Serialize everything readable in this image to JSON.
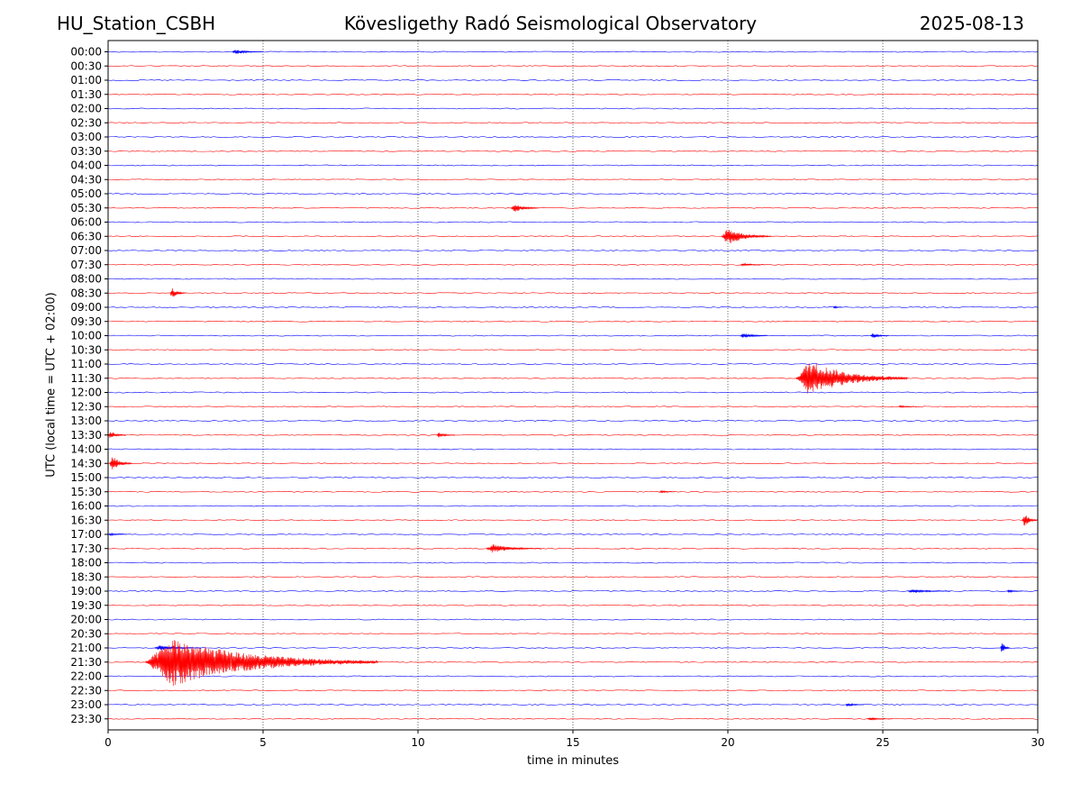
{
  "header": {
    "station": "HU_Station_CSBH",
    "observatory": "Kövesligethy Radó Seismological Observatory",
    "date": "2025-08-13"
  },
  "chart_data": {
    "type": "line",
    "title": "Kövesligethy Radó Seismological Observatory",
    "xlabel": "time in minutes",
    "ylabel": "UTC (local time = UTC + 02:00)",
    "xlim": [
      0,
      30
    ],
    "xticks": [
      0,
      5,
      10,
      15,
      20,
      25,
      30
    ],
    "vertical_gridlines": [
      5,
      10,
      15,
      20,
      25
    ],
    "grid_style": "dotted",
    "trace_colors": [
      "#0000ff",
      "#ff0000"
    ],
    "rows": [
      "00:00",
      "00:30",
      "01:00",
      "01:30",
      "02:00",
      "02:30",
      "03:00",
      "03:30",
      "04:00",
      "04:30",
      "05:00",
      "05:30",
      "06:00",
      "06:30",
      "07:00",
      "07:30",
      "08:00",
      "08:30",
      "09:00",
      "09:30",
      "10:00",
      "10:30",
      "11:00",
      "11:30",
      "12:00",
      "12:30",
      "13:00",
      "13:30",
      "14:00",
      "14:30",
      "15:00",
      "15:30",
      "16:00",
      "16:30",
      "17:00",
      "17:30",
      "18:00",
      "18:30",
      "19:00",
      "19:30",
      "20:00",
      "20:30",
      "21:00",
      "21:30",
      "22:00",
      "22:30",
      "23:00",
      "23:30"
    ],
    "events": [
      {
        "row": "00:00",
        "start_min": 4.0,
        "duration_min": 1.0,
        "amplitude": 0.2
      },
      {
        "row": "05:30",
        "start_min": 13.0,
        "duration_min": 0.9,
        "amplitude": 0.3
      },
      {
        "row": "06:30",
        "start_min": 19.8,
        "duration_min": 1.6,
        "amplitude": 0.6
      },
      {
        "row": "07:30",
        "start_min": 20.4,
        "duration_min": 0.8,
        "amplitude": 0.1
      },
      {
        "row": "08:30",
        "start_min": 2.0,
        "duration_min": 0.5,
        "amplitude": 0.4
      },
      {
        "row": "09:00",
        "start_min": 23.4,
        "duration_min": 0.3,
        "amplitude": 0.1
      },
      {
        "row": "10:00",
        "start_min": 20.4,
        "duration_min": 0.9,
        "amplitude": 0.2
      },
      {
        "row": "10:00",
        "start_min": 24.6,
        "duration_min": 0.6,
        "amplitude": 0.2
      },
      {
        "row": "11:30",
        "start_min": 22.2,
        "duration_min": 3.6,
        "amplitude": 1.3
      },
      {
        "row": "12:30",
        "start_min": 25.5,
        "duration_min": 0.6,
        "amplitude": 0.1
      },
      {
        "row": "13:30",
        "start_min": 0.0,
        "duration_min": 0.6,
        "amplitude": 0.3
      },
      {
        "row": "13:30",
        "start_min": 10.6,
        "duration_min": 0.6,
        "amplitude": 0.2
      },
      {
        "row": "14:30",
        "start_min": 0.05,
        "duration_min": 0.7,
        "amplitude": 0.6
      },
      {
        "row": "15:30",
        "start_min": 17.8,
        "duration_min": 0.5,
        "amplitude": 0.1
      },
      {
        "row": "16:30",
        "start_min": 29.5,
        "duration_min": 0.5,
        "amplitude": 0.5
      },
      {
        "row": "17:00",
        "start_min": 0.0,
        "duration_min": 0.6,
        "amplitude": 0.1
      },
      {
        "row": "17:30",
        "start_min": 12.2,
        "duration_min": 1.8,
        "amplitude": 0.3
      },
      {
        "row": "19:00",
        "start_min": 25.8,
        "duration_min": 1.4,
        "amplitude": 0.15
      },
      {
        "row": "19:00",
        "start_min": 29.0,
        "duration_min": 0.5,
        "amplitude": 0.1
      },
      {
        "row": "21:00",
        "start_min": 1.5,
        "duration_min": 1.5,
        "amplitude": 0.2
      },
      {
        "row": "21:00",
        "start_min": 28.8,
        "duration_min": 0.3,
        "amplitude": 0.5
      },
      {
        "row": "21:30",
        "start_min": 1.2,
        "duration_min": 7.5,
        "amplitude": 1.7
      },
      {
        "row": "23:00",
        "start_min": 23.8,
        "duration_min": 0.6,
        "amplitude": 0.15
      },
      {
        "row": "23:30",
        "start_min": 24.5,
        "duration_min": 0.8,
        "amplitude": 0.1
      }
    ]
  }
}
